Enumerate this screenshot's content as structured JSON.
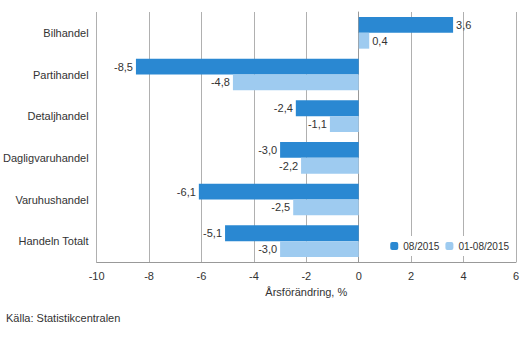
{
  "chart_data": {
    "type": "bar",
    "orientation": "horizontal",
    "categories": [
      "Bilhandel",
      "Partihandel",
      "Detaljhandel",
      "Dagligvaruhandel",
      "Varuhushandel",
      "Handeln Totalt"
    ],
    "series": [
      {
        "name": "08/2015",
        "color": "#2a88d2",
        "values": [
          3.6,
          -8.5,
          -2.4,
          -3.0,
          -6.1,
          -5.1
        ],
        "value_labels": [
          "3,6",
          "-8,5",
          "-2,4",
          "-3,0",
          "-6,1",
          "-5,1"
        ]
      },
      {
        "name": "01-08/2015",
        "color": "#9ecbf0",
        "values": [
          0.4,
          -4.8,
          -1.1,
          -2.2,
          -2.5,
          -3.0
        ],
        "value_labels": [
          "0,4",
          "-4,8",
          "-1,1",
          "-2,2",
          "-2,5",
          "-3,0"
        ]
      }
    ],
    "xlim": [
      -10,
      6
    ],
    "xticks": [
      -10,
      -8,
      -6,
      -4,
      -2,
      0,
      2,
      4,
      6
    ],
    "xlabel": "Årsförändring, %",
    "annotations": [
      "Källa: Statistikcentralen"
    ],
    "grid": true,
    "legend": "lower right",
    "data_labels": true
  }
}
